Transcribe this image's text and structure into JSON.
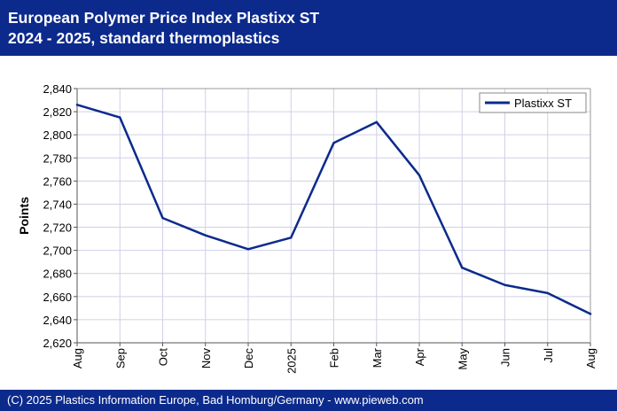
{
  "header": {
    "title_line1": "European Polymer Price Index Plastixx ST",
    "title_line2": "2024 - 2025, standard thermoplastics"
  },
  "footer": {
    "text": "(C) 2025 Plastics Information Europe, Bad Homburg/Germany - www.pieweb.com"
  },
  "colors": {
    "header_bg": "#0c2a8c",
    "series": "#0c2a8c",
    "grid": "#d0d0e8"
  },
  "chart_data": {
    "type": "line",
    "title": "",
    "xlabel": "",
    "ylabel": "Points",
    "categories": [
      "Aug",
      "Sep",
      "Oct",
      "Nov",
      "Dec",
      "2025",
      "Feb",
      "Mar",
      "Apr",
      "May",
      "Jun",
      "Jul",
      "Aug"
    ],
    "series": [
      {
        "name": "Plastixx ST",
        "values": [
          2826,
          2815,
          2728,
          2713,
          2701,
          2711,
          2793,
          2811,
          2765,
          2685,
          2670,
          2663,
          2645
        ]
      }
    ],
    "ylim": [
      2620,
      2840
    ],
    "yticks": [
      2620,
      2640,
      2660,
      2680,
      2700,
      2720,
      2740,
      2760,
      2780,
      2800,
      2820,
      2840
    ],
    "ytick_labels": [
      "2,620",
      "2,640",
      "2,660",
      "2,680",
      "2,700",
      "2,720",
      "2,740",
      "2,760",
      "2,780",
      "2,800",
      "2,820",
      "2,840"
    ],
    "grid": true,
    "legend": "top-right"
  }
}
